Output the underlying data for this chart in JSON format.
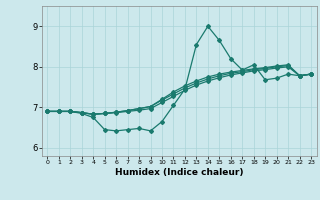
{
  "xlabel": "Humidex (Indice chaleur)",
  "background_color": "#cce8ec",
  "grid_color": "#aad4d8",
  "line_color": "#1a7a6e",
  "x_values": [
    0,
    1,
    2,
    3,
    4,
    5,
    6,
    7,
    8,
    9,
    10,
    11,
    12,
    13,
    14,
    15,
    16,
    17,
    18,
    19,
    20,
    21,
    22,
    23
  ],
  "xlim": [
    -0.5,
    23.5
  ],
  "ylim": [
    5.8,
    9.5
  ],
  "yticks": [
    6,
    7,
    8,
    9
  ],
  "xtick_labels": [
    "0",
    "1",
    "2",
    "3",
    "4",
    "5",
    "6",
    "7",
    "8",
    "9",
    "10",
    "11",
    "12",
    "13",
    "14",
    "15",
    "16",
    "17",
    "18",
    "19",
    "20",
    "21",
    "22",
    "23"
  ],
  "series": [
    [
      6.9,
      6.9,
      6.9,
      6.85,
      6.75,
      6.45,
      6.42,
      6.45,
      6.48,
      6.42,
      6.65,
      7.05,
      7.45,
      8.55,
      9.0,
      8.65,
      8.2,
      7.92,
      8.05,
      7.68,
      7.72,
      7.82,
      7.78,
      7.82
    ],
    [
      6.9,
      6.9,
      6.9,
      6.87,
      6.83,
      6.85,
      6.87,
      6.9,
      6.93,
      6.97,
      7.12,
      7.27,
      7.42,
      7.55,
      7.65,
      7.73,
      7.8,
      7.85,
      7.9,
      7.93,
      7.97,
      8.0,
      7.78,
      7.82
    ],
    [
      6.9,
      6.9,
      6.9,
      6.87,
      6.83,
      6.85,
      6.88,
      6.92,
      6.97,
      7.02,
      7.18,
      7.33,
      7.48,
      7.6,
      7.7,
      7.78,
      7.84,
      7.88,
      7.93,
      7.96,
      8.0,
      8.03,
      7.78,
      7.82
    ],
    [
      6.9,
      6.9,
      6.9,
      6.87,
      6.83,
      6.85,
      6.88,
      6.92,
      6.97,
      7.02,
      7.2,
      7.38,
      7.53,
      7.65,
      7.75,
      7.82,
      7.87,
      7.91,
      7.95,
      7.98,
      8.02,
      8.05,
      7.78,
      7.82
    ]
  ]
}
